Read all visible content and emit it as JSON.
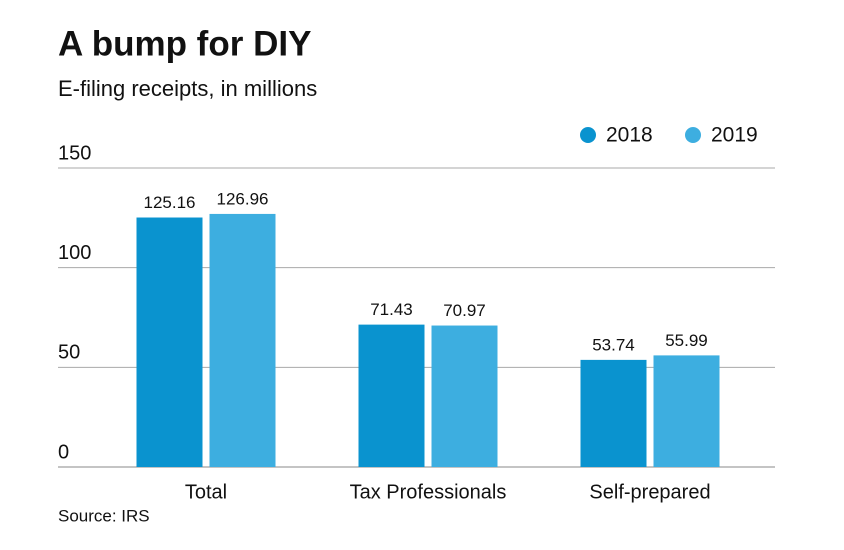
{
  "chart_data": {
    "type": "bar",
    "title": "A bump for DIY",
    "subtitle": "E-filing receipts, in millions",
    "categories": [
      "Total",
      "Tax Professionals",
      "Self-prepared"
    ],
    "series": [
      {
        "name": "2018",
        "color": "#0a93cf",
        "values": [
          125.16,
          71.43,
          53.74
        ]
      },
      {
        "name": "2019",
        "color": "#3daee0",
        "values": [
          126.96,
          70.97,
          55.99
        ]
      }
    ],
    "ylim": [
      0,
      150
    ],
    "yticks": [
      0,
      50,
      100,
      150
    ],
    "grid": true,
    "legend": "top-right",
    "source": "Source: IRS"
  }
}
